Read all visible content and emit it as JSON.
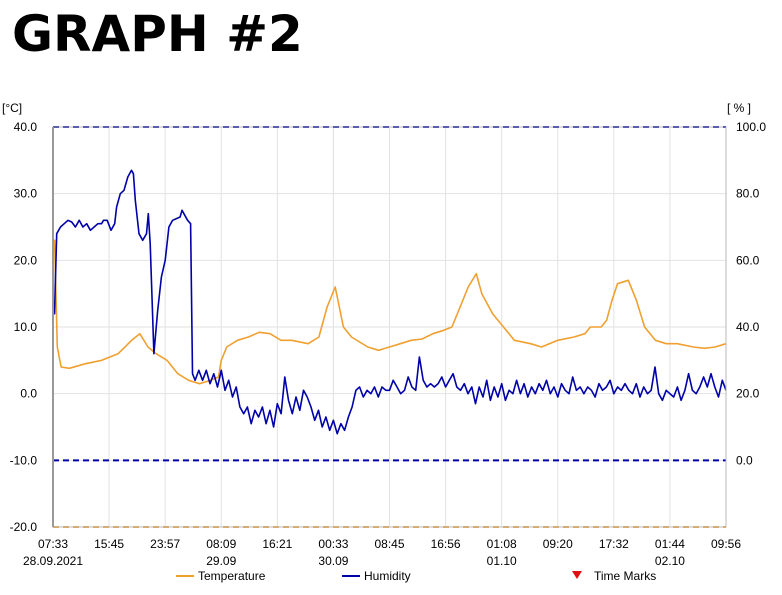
{
  "page_title": "GRAPH #2",
  "chart_data": {
    "type": "line",
    "y_left_unit": "[°C]",
    "y_right_unit": "[ % ]",
    "ylim_left": [
      -20,
      40
    ],
    "ylim_right": [
      -20,
      100
    ],
    "y_left_ticks": [
      "40.0",
      "30.0",
      "20.0",
      "10.0",
      "0.0",
      "-10.0",
      "-20.0"
    ],
    "y_right_ticks": [
      "100.0",
      "80.0",
      "60.0",
      "40.0",
      "20.0",
      "0.0"
    ],
    "x_ticks": [
      {
        "time": "07:33",
        "date": "28.09.2021"
      },
      {
        "time": "15:45",
        "date": ""
      },
      {
        "time": "23:57",
        "date": ""
      },
      {
        "time": "08:09",
        "date": "29.09"
      },
      {
        "time": "16:21",
        "date": ""
      },
      {
        "time": "00:33",
        "date": "30.09"
      },
      {
        "time": "08:45",
        "date": ""
      },
      {
        "time": "16:56",
        "date": ""
      },
      {
        "time": "01:08",
        "date": "01.10"
      },
      {
        "time": "09:20",
        "date": ""
      },
      {
        "time": "17:32",
        "date": ""
      },
      {
        "time": "01:44",
        "date": "02.10"
      },
      {
        "time": "09:56",
        "date": ""
      }
    ],
    "x_range_hours": [
      0,
      98.4
    ],
    "grid": true,
    "threshold_lines": {
      "humidity_upper": 100,
      "humidity_lower": 0,
      "temperature_lower": -20
    },
    "legend": {
      "placement": "bottom",
      "items": [
        {
          "label": "Temperature",
          "color": "#f0a030",
          "marker": "line"
        },
        {
          "label": "Humidity",
          "color": "#0000aa",
          "marker": "line"
        },
        {
          "label": "Time Marks",
          "color": "#e01010",
          "marker": "triangle"
        }
      ]
    },
    "series": [
      {
        "name": "Temperature",
        "axis": "left",
        "color": "#f0a030",
        "points": [
          [
            0,
            21
          ],
          [
            0.3,
            23
          ],
          [
            0.8,
            7
          ],
          [
            1.5,
            4
          ],
          [
            3,
            3.8
          ],
          [
            6,
            4.5
          ],
          [
            9,
            5
          ],
          [
            12,
            6
          ],
          [
            14.5,
            8
          ],
          [
            16,
            9
          ],
          [
            17.5,
            7
          ],
          [
            19,
            6
          ],
          [
            21,
            5
          ],
          [
            23,
            3
          ],
          [
            25,
            2
          ],
          [
            27,
            1.5
          ],
          [
            29,
            2
          ],
          [
            30.5,
            2.5
          ],
          [
            31,
            5
          ],
          [
            32,
            7
          ],
          [
            34,
            8
          ],
          [
            36,
            8.5
          ],
          [
            38,
            9.2
          ],
          [
            40,
            9
          ],
          [
            42,
            8
          ],
          [
            44,
            8
          ],
          [
            47,
            7.5
          ],
          [
            49,
            8.5
          ],
          [
            50.5,
            13
          ],
          [
            52,
            16
          ],
          [
            53.5,
            10
          ],
          [
            55,
            8.5
          ],
          [
            58,
            7
          ],
          [
            60,
            6.5
          ],
          [
            62,
            7
          ],
          [
            64,
            7.5
          ],
          [
            66,
            8
          ],
          [
            68,
            8.2
          ],
          [
            70,
            9
          ],
          [
            72,
            9.5
          ],
          [
            73.5,
            10
          ],
          [
            75,
            13
          ],
          [
            76.5,
            16
          ],
          [
            78,
            18
          ],
          [
            79,
            15
          ],
          [
            81,
            12
          ],
          [
            83,
            10
          ],
          [
            85,
            8
          ],
          [
            88,
            7.5
          ],
          [
            90,
            7
          ],
          [
            93,
            8
          ],
          [
            96,
            8.5
          ],
          [
            98,
            9
          ],
          [
            99,
            10
          ],
          [
            101,
            10
          ],
          [
            102,
            11
          ],
          [
            103,
            14
          ],
          [
            104,
            16.5
          ],
          [
            106,
            17
          ],
          [
            107.5,
            14
          ],
          [
            109,
            10
          ],
          [
            111,
            8
          ],
          [
            113,
            7.5
          ],
          [
            115,
            7.5
          ],
          [
            118,
            7
          ],
          [
            120,
            6.8
          ],
          [
            122,
            7
          ],
          [
            124,
            7.5
          ]
        ]
      },
      {
        "name": "Humidity",
        "axis": "right",
        "color": "#0000aa",
        "points": [
          [
            0,
            44
          ],
          [
            0.4,
            44
          ],
          [
            1,
            68
          ],
          [
            2,
            70
          ],
          [
            3,
            71
          ],
          [
            4,
            72
          ],
          [
            5,
            71.5
          ],
          [
            6,
            70
          ],
          [
            7,
            72
          ],
          [
            8,
            70
          ],
          [
            9,
            71
          ],
          [
            10,
            69
          ],
          [
            11,
            70
          ],
          [
            12,
            71
          ],
          [
            13,
            71
          ],
          [
            13.5,
            72
          ],
          [
            14.5,
            72
          ],
          [
            15.5,
            69
          ],
          [
            16.5,
            71
          ],
          [
            17,
            76
          ],
          [
            18,
            80
          ],
          [
            19,
            81
          ],
          [
            20,
            85
          ],
          [
            21,
            87
          ],
          [
            21.5,
            86
          ],
          [
            22,
            78
          ],
          [
            23,
            68
          ],
          [
            24,
            66
          ],
          [
            25,
            68
          ],
          [
            25.5,
            74
          ],
          [
            26,
            65
          ],
          [
            27,
            32
          ],
          [
            28,
            45
          ],
          [
            29,
            55
          ],
          [
            30,
            60
          ],
          [
            31,
            70
          ],
          [
            32,
            72
          ],
          [
            34,
            73
          ],
          [
            34.5,
            75
          ],
          [
            35,
            74
          ],
          [
            36,
            72
          ],
          [
            36.8,
            71
          ],
          [
            37.3,
            26
          ],
          [
            38,
            24
          ],
          [
            39,
            27
          ],
          [
            40,
            24
          ],
          [
            41,
            27
          ],
          [
            42,
            23
          ],
          [
            43,
            26
          ],
          [
            44,
            22
          ],
          [
            45,
            27
          ],
          [
            46,
            21
          ],
          [
            47,
            24
          ],
          [
            48,
            19
          ],
          [
            49,
            22
          ],
          [
            50,
            16
          ],
          [
            51,
            14
          ],
          [
            52,
            16
          ],
          [
            53,
            11
          ],
          [
            54,
            15
          ],
          [
            55,
            13
          ],
          [
            56,
            16
          ],
          [
            57,
            11
          ],
          [
            58,
            15
          ],
          [
            59,
            10
          ],
          [
            60,
            17
          ],
          [
            61,
            14
          ],
          [
            62,
            25
          ],
          [
            63,
            18
          ],
          [
            64,
            14
          ],
          [
            65,
            19
          ],
          [
            66,
            15
          ],
          [
            67,
            21
          ],
          [
            68,
            19
          ],
          [
            69,
            16
          ],
          [
            70,
            12
          ],
          [
            71,
            15
          ],
          [
            72,
            10
          ],
          [
            73,
            13
          ],
          [
            74,
            9
          ],
          [
            75,
            12
          ],
          [
            76,
            8
          ],
          [
            77,
            11
          ],
          [
            78,
            9
          ],
          [
            79,
            13
          ],
          [
            80,
            16
          ],
          [
            81,
            21
          ],
          [
            82,
            22
          ],
          [
            83,
            19
          ],
          [
            84,
            21
          ],
          [
            85,
            20
          ],
          [
            86,
            22
          ],
          [
            87,
            19
          ],
          [
            88,
            22
          ],
          [
            89,
            21
          ],
          [
            90,
            21
          ],
          [
            91,
            24
          ],
          [
            92,
            22
          ],
          [
            93,
            20
          ],
          [
            94,
            21
          ],
          [
            95,
            25
          ],
          [
            96,
            22
          ],
          [
            97,
            21
          ],
          [
            98,
            31
          ],
          [
            99,
            24
          ],
          [
            100,
            22
          ],
          [
            101,
            23
          ],
          [
            102,
            22
          ],
          [
            103,
            23
          ],
          [
            104,
            25
          ],
          [
            105,
            22
          ],
          [
            106,
            24
          ],
          [
            107,
            26
          ],
          [
            108,
            22
          ],
          [
            109,
            21
          ],
          [
            110,
            23
          ],
          [
            111,
            20
          ],
          [
            112,
            22
          ],
          [
            113,
            17
          ],
          [
            114,
            22
          ],
          [
            115,
            19
          ],
          [
            116,
            24
          ],
          [
            117,
            18
          ],
          [
            118,
            22
          ],
          [
            119,
            19
          ],
          [
            120,
            23
          ],
          [
            121,
            18
          ],
          [
            122,
            21
          ],
          [
            123,
            20
          ],
          [
            124,
            24
          ],
          [
            125,
            20
          ],
          [
            126,
            23
          ],
          [
            127,
            19
          ],
          [
            128,
            22
          ],
          [
            129,
            20
          ],
          [
            130,
            23
          ],
          [
            131,
            21
          ],
          [
            132,
            24
          ],
          [
            133,
            20
          ],
          [
            134,
            22
          ],
          [
            135,
            19
          ],
          [
            136,
            23
          ],
          [
            137,
            21
          ],
          [
            138,
            20
          ],
          [
            139,
            25
          ],
          [
            140,
            21
          ],
          [
            141,
            22
          ],
          [
            142,
            20
          ],
          [
            143,
            22
          ],
          [
            144,
            21
          ],
          [
            145,
            19
          ],
          [
            146,
            23
          ],
          [
            147,
            21
          ],
          [
            148,
            22
          ],
          [
            149,
            24
          ],
          [
            150,
            20
          ],
          [
            151,
            22
          ],
          [
            152,
            21
          ],
          [
            153,
            23
          ],
          [
            154,
            21
          ],
          [
            155,
            20
          ],
          [
            156,
            23
          ],
          [
            157,
            19
          ],
          [
            158,
            22
          ],
          [
            159,
            20
          ],
          [
            160,
            21
          ],
          [
            161,
            28
          ],
          [
            162,
            20
          ],
          [
            163,
            18
          ],
          [
            164,
            21
          ],
          [
            165,
            20
          ],
          [
            166,
            19
          ],
          [
            167,
            22
          ],
          [
            168,
            18
          ],
          [
            169,
            21
          ],
          [
            170,
            26
          ],
          [
            171,
            21
          ],
          [
            172,
            20
          ],
          [
            173,
            22
          ],
          [
            174,
            25
          ],
          [
            175,
            22
          ],
          [
            176,
            26
          ],
          [
            177,
            22
          ],
          [
            178,
            19
          ],
          [
            179,
            24
          ],
          [
            180,
            21
          ]
        ]
      }
    ]
  }
}
